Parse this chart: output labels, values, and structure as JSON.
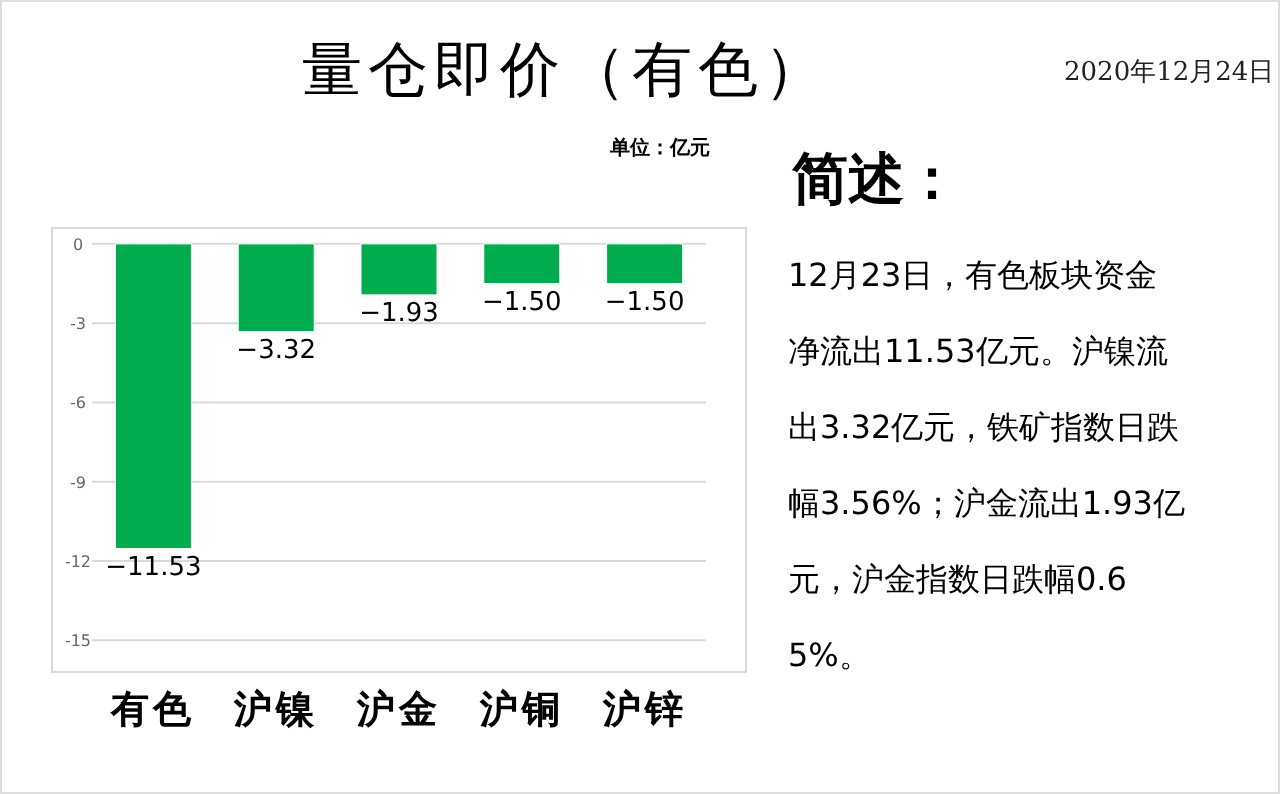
{
  "chart_data": {
    "type": "bar",
    "title": "量仓即价（有色）",
    "categories": [
      "有色",
      "沪镍",
      "沪金",
      "沪铜",
      "沪锌"
    ],
    "series": [
      {
        "color": "#00ac4e",
        "values": [
          -11.53,
          -3.32,
          -1.93,
          -1.5,
          -1.5
        ],
        "value_labels": [
          "−11.53",
          "−3.32",
          "−1.93",
          "−1.50",
          "−1.50"
        ]
      }
    ],
    "ylim": [
      -16.2,
      0.6
    ],
    "yticks": [
      0,
      -3,
      -6,
      -9,
      -12,
      -15
    ],
    "grid": "y",
    "annotations": [
      "单位：亿元",
      "简述：",
      "12月23日，有色板块资金净流出11.53亿元。沪镍流出3.32亿元，铁矿指数日跌幅3.56%；沪金流出1.93亿元，沪金指数日跌幅0.65%。",
      "2020年12月24日"
    ]
  }
}
